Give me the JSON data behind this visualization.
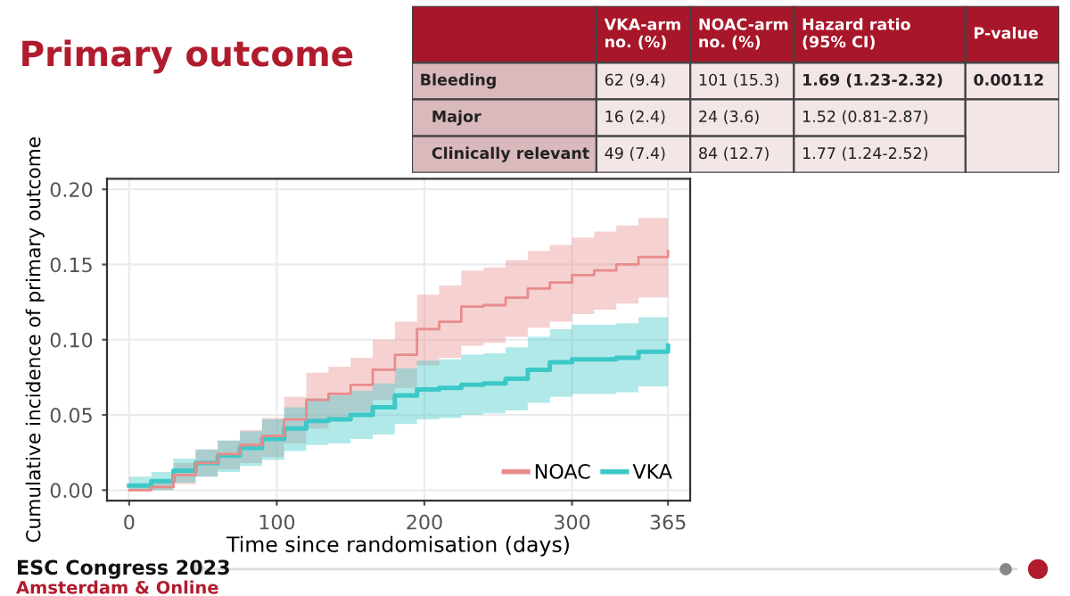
{
  "chart_data": {
    "type": "step",
    "title": "Primary outcome",
    "xlabel": "Time since randomisation (days)",
    "ylabel": "Cumulative incidence of primary outcome",
    "x": [
      0,
      15,
      30,
      45,
      60,
      75,
      90,
      105,
      120,
      135,
      150,
      165,
      180,
      195,
      210,
      225,
      240,
      255,
      270,
      285,
      300,
      315,
      330,
      345,
      365
    ],
    "series": [
      {
        "name": "NOAC",
        "color": "#e88b8b",
        "values": [
          0,
          0.002,
          0.01,
          0.018,
          0.024,
          0.03,
          0.036,
          0.047,
          0.06,
          0.064,
          0.07,
          0.08,
          0.09,
          0.107,
          0.112,
          0.122,
          0.123,
          0.128,
          0.134,
          0.138,
          0.143,
          0.146,
          0.15,
          0.155,
          0.159
        ],
        "lower": [
          0,
          0,
          0.004,
          0.009,
          0.014,
          0.018,
          0.022,
          0.031,
          0.041,
          0.046,
          0.052,
          0.06,
          0.068,
          0.083,
          0.088,
          0.096,
          0.098,
          0.102,
          0.108,
          0.112,
          0.117,
          0.12,
          0.124,
          0.128,
          0.133
        ],
        "upper": [
          0.004,
          0.007,
          0.018,
          0.027,
          0.033,
          0.04,
          0.048,
          0.062,
          0.078,
          0.082,
          0.088,
          0.1,
          0.112,
          0.13,
          0.136,
          0.146,
          0.148,
          0.153,
          0.159,
          0.163,
          0.168,
          0.172,
          0.176,
          0.181,
          0.185
        ]
      },
      {
        "name": "VKA",
        "color": "#3cc8c8",
        "values": [
          0.003,
          0.006,
          0.013,
          0.018,
          0.023,
          0.028,
          0.034,
          0.041,
          0.046,
          0.047,
          0.05,
          0.055,
          0.063,
          0.067,
          0.068,
          0.07,
          0.071,
          0.074,
          0.08,
          0.085,
          0.087,
          0.087,
          0.088,
          0.092,
          0.096
        ],
        "lower": [
          0,
          0,
          0.005,
          0.009,
          0.012,
          0.016,
          0.02,
          0.026,
          0.03,
          0.031,
          0.034,
          0.037,
          0.044,
          0.047,
          0.048,
          0.05,
          0.051,
          0.053,
          0.058,
          0.062,
          0.064,
          0.064,
          0.065,
          0.069,
          0.073
        ],
        "upper": [
          0.009,
          0.012,
          0.021,
          0.027,
          0.033,
          0.039,
          0.047,
          0.055,
          0.061,
          0.063,
          0.066,
          0.071,
          0.081,
          0.086,
          0.087,
          0.09,
          0.091,
          0.095,
          0.102,
          0.107,
          0.11,
          0.11,
          0.111,
          0.115,
          0.12
        ]
      }
    ],
    "xlim": [
      -15,
      380
    ],
    "xticks": [
      0,
      100,
      200,
      300,
      365
    ],
    "ylim": [
      -0.007,
      0.207
    ],
    "yticks": [
      {
        "value": 0,
        "label": "0.00"
      },
      {
        "value": 0.05,
        "label": "0.05"
      },
      {
        "value": 0.1,
        "label": "0.10"
      },
      {
        "value": 0.15,
        "label": "0.15"
      },
      {
        "value": 0.2,
        "label": "0.20"
      }
    ],
    "grid": true,
    "legend": "bottom right",
    "annotations": [
      "VKA-arm\nno. (%)",
      "NOAC-arm\nno. (%)",
      "Hazard ratio\n(95% CI)",
      "P-value",
      "Bleeding",
      "62 (9.4)",
      "101 (15.3)",
      "1.69 (1.23-2.32)",
      "0.00112",
      "Major",
      "16 (2.4)",
      "24 (3.6)",
      "1.52 (0.81-2.87)",
      "Clinically relevant",
      "49 (7.4)",
      "84 (12.7)",
      "1.77 (1.24-2.52)",
      "ESC Congress 2023",
      "Amsterdam & Online"
    ]
  }
}
